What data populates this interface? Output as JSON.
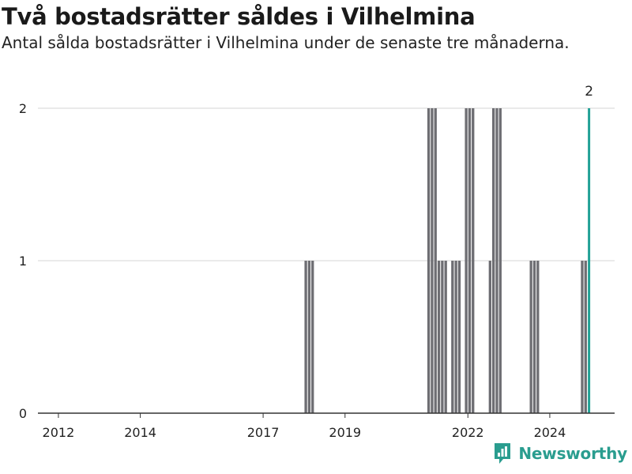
{
  "header": {
    "title": "Två bostadsrätter såldes i Vilhelmina",
    "subtitle": "Antal sålda bostadsrätter i Vilhelmina under de senaste tre månaderna."
  },
  "brand": {
    "name": "Newsworthy",
    "color": "#2a9d8f"
  },
  "colors": {
    "bar": "#6e6e73",
    "highlight": "#21a196",
    "grid": "#d6d6d6",
    "axis": "#333333"
  },
  "chart_data": {
    "type": "bar",
    "title": "Två bostadsrätter såldes i Vilhelmina",
    "subtitle": "Antal sålda bostadsrätter i Vilhelmina under de senaste tre månaderna.",
    "xlabel": "",
    "ylabel": "",
    "ylim": [
      0,
      2
    ],
    "xlim": [
      "2011-07",
      "2025-08"
    ],
    "y_ticks": [
      "0",
      "1",
      "2"
    ],
    "x_ticks": [
      "2012",
      "2014",
      "2017",
      "2019",
      "2022",
      "2024"
    ],
    "grid": true,
    "bars": [
      {
        "month": "2018-01",
        "value": 1
      },
      {
        "month": "2018-02",
        "value": 1
      },
      {
        "month": "2018-03",
        "value": 1
      },
      {
        "month": "2021-01",
        "value": 2
      },
      {
        "month": "2021-02",
        "value": 2
      },
      {
        "month": "2021-03",
        "value": 2
      },
      {
        "month": "2021-04",
        "value": 1
      },
      {
        "month": "2021-05",
        "value": 1
      },
      {
        "month": "2021-06",
        "value": 1
      },
      {
        "month": "2021-08",
        "value": 1
      },
      {
        "month": "2021-09",
        "value": 1
      },
      {
        "month": "2021-10",
        "value": 1
      },
      {
        "month": "2021-12",
        "value": 2
      },
      {
        "month": "2022-01",
        "value": 2
      },
      {
        "month": "2022-02",
        "value": 2
      },
      {
        "month": "2022-07",
        "value": 1
      },
      {
        "month": "2022-08",
        "value": 2
      },
      {
        "month": "2022-09",
        "value": 2
      },
      {
        "month": "2022-10",
        "value": 2
      },
      {
        "month": "2023-07",
        "value": 1
      },
      {
        "month": "2023-08",
        "value": 1
      },
      {
        "month": "2023-09",
        "value": 1
      },
      {
        "month": "2024-10",
        "value": 1
      },
      {
        "month": "2024-11",
        "value": 1
      },
      {
        "month": "2024-12",
        "value": 2,
        "highlight": true
      }
    ],
    "annotation": {
      "month": "2024-12",
      "label": "2"
    }
  }
}
